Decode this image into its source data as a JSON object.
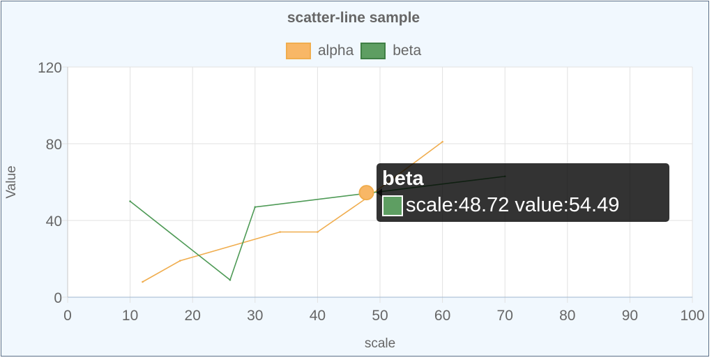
{
  "chart_data": {
    "type": "line",
    "title": "scatter-line sample",
    "xlabel": "scale",
    "ylabel": "Value",
    "xlim": [
      0,
      100
    ],
    "ylim": [
      0,
      120
    ],
    "x_ticks": [
      0,
      10,
      20,
      30,
      40,
      50,
      60,
      70,
      80,
      90,
      100
    ],
    "y_ticks": [
      0,
      40,
      80,
      120
    ],
    "grid": true,
    "legend_position": "top",
    "series": [
      {
        "name": "alpha",
        "color": "#f0ad4e",
        "points": [
          [
            12,
            8
          ],
          [
            18,
            19
          ],
          [
            34,
            34
          ],
          [
            40,
            34
          ],
          [
            48,
            52
          ],
          [
            60,
            81
          ]
        ]
      },
      {
        "name": "beta",
        "color": "#4e9a56",
        "points": [
          [
            10,
            50
          ],
          [
            26,
            9
          ],
          [
            30,
            47
          ],
          [
            48.72,
            54.49
          ],
          [
            70,
            63
          ]
        ]
      }
    ],
    "tooltip": {
      "series": "beta",
      "text": "scale:48.72  value:54.49",
      "x": 48.72,
      "y": 54.49,
      "color": "#5e9e62"
    }
  }
}
